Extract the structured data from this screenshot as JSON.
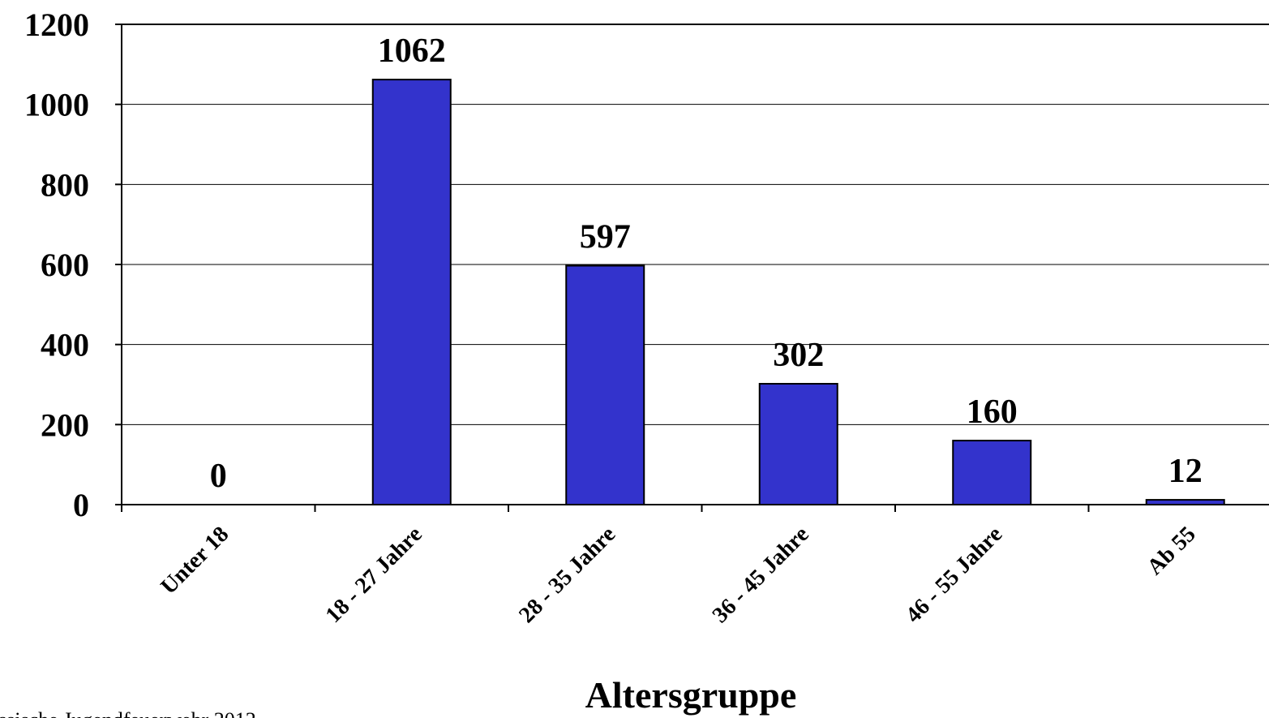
{
  "chart_data": {
    "type": "bar",
    "categories": [
      "Unter 18",
      "18 - 27 Jahre",
      "28 - 35 Jahre",
      "36 - 45 Jahre",
      "46 - 55 Jahre",
      "Ab 55"
    ],
    "values": [
      0,
      1062,
      597,
      302,
      160,
      12
    ],
    "data_labels": [
      "0",
      "1062",
      "597",
      "302",
      "160",
      "12"
    ],
    "xlabel": "Altersgruppe",
    "ylabel": "",
    "ylim": [
      0,
      1200
    ],
    "yticks": [
      "0",
      "200",
      "400",
      "600",
      "800",
      "1000",
      "1200"
    ],
    "grid": true,
    "legend": "none",
    "bar_color": "#3333CC",
    "source_note": "ssische Jugendfeuerwehr 2012"
  }
}
